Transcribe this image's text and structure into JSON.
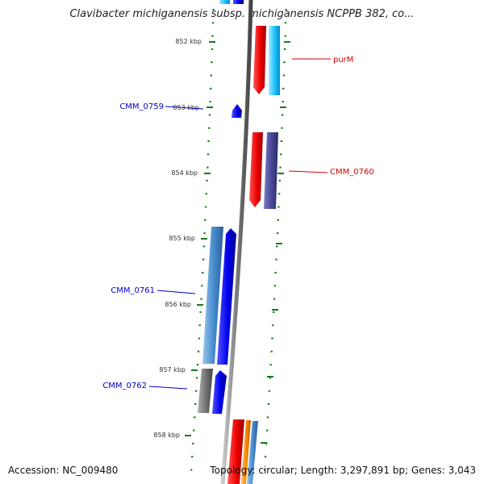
{
  "title": "Clavibacter michiganensis subsp. michiganensis NCPPB 382, co...",
  "footer": {
    "accession": "Accession: NC_009480",
    "stats": "Topology: circular; Length: 3,297,891 bp; Genes: 3,043"
  },
  "ticks": [
    "852 kbp",
    "853 kbp",
    "854 kbp",
    "855 kbp",
    "856 kbp",
    "857 kbp",
    "858 kbp"
  ],
  "genes": [
    {
      "name": "purM",
      "strand": "forward",
      "color": "#d40000"
    },
    {
      "name": "CMM_0759",
      "strand": "reverse",
      "color": "#0000cc"
    },
    {
      "name": "CMM_0760",
      "strand": "forward",
      "color": "#d40000"
    },
    {
      "name": "CMM_0761",
      "strand": "reverse",
      "color": "#0000cc"
    },
    {
      "name": "CMM_0762",
      "strand": "reverse",
      "color": "#0000cc"
    }
  ],
  "colors": {
    "cds": "#ee0000",
    "cds_reverse": "#0000ee",
    "rrna_like": "#00c0ff",
    "misc": "#4a4a99",
    "steelblue": "#4a8fd0",
    "gray": "#777777",
    "orange": "#ff8c00",
    "backbone": "#888888",
    "tick_marks": "#1a7a1a"
  }
}
